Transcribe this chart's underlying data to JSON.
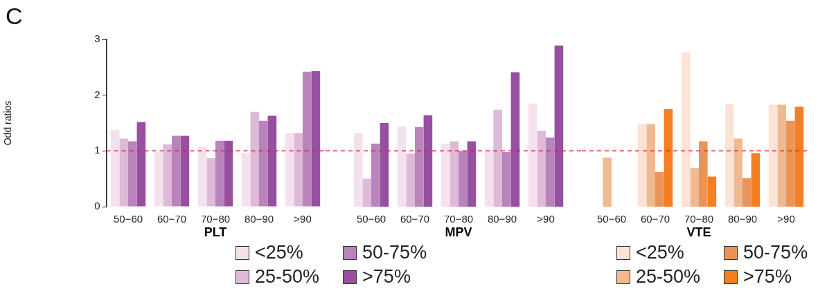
{
  "chart_data": [
    {
      "type": "bar",
      "title": "C",
      "xlabel": "PLT",
      "ylabel": "Odd ratios",
      "categories": [
        "50−60",
        "60−70",
        "70−80",
        "80−90",
        ">90"
      ],
      "series": [
        {
          "name": "<25%",
          "color": "#f4e1ee",
          "values": [
            1.38,
            0.98,
            1.08,
            0.96,
            1.32
          ]
        },
        {
          "name": "25-50%",
          "color": "#dfb9d8",
          "values": [
            1.22,
            1.12,
            0.87,
            1.7,
            1.32
          ]
        },
        {
          "name": "50-75%",
          "color": "#b784bb",
          "values": [
            1.17,
            1.27,
            1.18,
            1.54,
            2.42
          ]
        },
        {
          "name": ">75%",
          "color": "#974f9f",
          "values": [
            1.52,
            1.27,
            1.18,
            1.63,
            2.43
          ]
        }
      ],
      "ylim": [
        0,
        3
      ],
      "yticks": [
        0,
        1,
        2,
        3
      ],
      "ref_lines": [
        {
          "axis": "y",
          "value": 1,
          "color": "#d62728",
          "line_style": "dashed"
        }
      ],
      "legend": "bottom"
    },
    {
      "type": "bar",
      "xlabel": "MPV",
      "categories": [
        "50−60",
        "60−70",
        "70−80",
        "80−90",
        ">90"
      ],
      "series": [
        {
          "color": "#f4e1ee",
          "values": [
            1.32,
            1.44,
            1.13,
            1.01,
            1.85
          ]
        },
        {
          "color": "#dfb9d8",
          "values": [
            0.5,
            0.95,
            1.17,
            1.74,
            1.36
          ]
        },
        {
          "color": "#b784bb",
          "values": [
            1.13,
            1.43,
            1.0,
            0.98,
            1.24
          ]
        },
        {
          "color": "#974f9f",
          "values": [
            1.5,
            1.64,
            1.17,
            2.41,
            2.89
          ]
        }
      ],
      "ylim": [
        0,
        3
      ],
      "yticks": [
        0,
        1,
        2,
        3
      ],
      "tick_labels": "x",
      "ref_lines": [
        {
          "axis": "y",
          "value": 1,
          "color": "#d62728",
          "line_style": "dashed"
        }
      ]
    },
    {
      "type": "bar",
      "xlabel": "VTE",
      "categories": [
        "50−60",
        "60−70",
        "70−80",
        "80−90",
        ">90"
      ],
      "series": [
        {
          "name": "<25%",
          "color": "#fce3d6",
          "values": [
            null,
            1.48,
            2.77,
            1.84,
            1.83
          ]
        },
        {
          "name": "25-50%",
          "color": "#f0b990",
          "values": [
            0.88,
            1.48,
            0.69,
            1.22,
            1.83
          ]
        },
        {
          "name": "50-75%",
          "color": "#e9955a",
          "values": [
            null,
            0.62,
            1.17,
            0.51,
            1.54
          ]
        },
        {
          "name": ">75%",
          "color": "#f47f22",
          "values": [
            null,
            1.75,
            0.54,
            0.96,
            1.79
          ]
        }
      ],
      "ylim": [
        0,
        3
      ],
      "yticks": [
        0,
        1,
        2,
        3
      ],
      "tick_labels": "x",
      "ref_lines": [
        {
          "axis": "y",
          "value": 1,
          "color": "#d62728",
          "line_style": "dashed"
        }
      ],
      "legend": "bottom"
    }
  ]
}
